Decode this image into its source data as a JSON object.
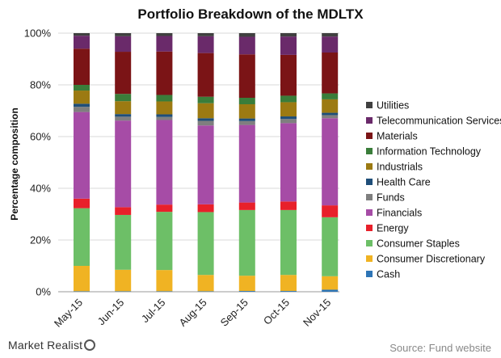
{
  "chart_data": {
    "type": "bar",
    "stacked": true,
    "title": "Portfolio Breakdown of the MDLTX",
    "xlabel": "",
    "ylabel": "Percentage composition",
    "ylim": [
      0,
      100
    ],
    "yticks": [
      "0%",
      "20%",
      "40%",
      "60%",
      "80%",
      "100%"
    ],
    "grid": true,
    "legend_position": "right",
    "categories": [
      "May-15",
      "Jun-15",
      "Jul-15",
      "Aug-15",
      "Sep-15",
      "Oct-15",
      "Nov-15"
    ],
    "series": [
      {
        "name": "Cash",
        "color": "#2e75b6",
        "values": [
          0.2,
          0.2,
          0.2,
          0.2,
          0.3,
          0.3,
          0.8
        ]
      },
      {
        "name": "Consumer Discretionary",
        "color": "#f0b323",
        "values": [
          9.8,
          8.3,
          8.2,
          6.3,
          5.9,
          6.2,
          5.2
        ]
      },
      {
        "name": "Consumer Staples",
        "color": "#6dbf67",
        "values": [
          22.3,
          21.2,
          22.5,
          24.3,
          25.4,
          25.1,
          22.8
        ]
      },
      {
        "name": "Energy",
        "color": "#e8202a",
        "values": [
          3.7,
          3.0,
          2.8,
          3.0,
          2.9,
          3.3,
          4.6
        ]
      },
      {
        "name": "Financials",
        "color": "#a64ca6",
        "values": [
          33.5,
          33.5,
          32.7,
          30.5,
          30.0,
          30.3,
          33.7
        ]
      },
      {
        "name": "Funds",
        "color": "#7f7f7f",
        "values": [
          2.0,
          1.5,
          1.2,
          1.8,
          1.5,
          1.6,
          1.2
        ]
      },
      {
        "name": "Health Care",
        "color": "#1f4e79",
        "values": [
          1.2,
          1.0,
          1.0,
          1.0,
          1.0,
          1.0,
          0.9
        ]
      },
      {
        "name": "Industrials",
        "color": "#9c7a12",
        "values": [
          5.1,
          5.0,
          5.0,
          5.8,
          5.5,
          5.5,
          5.2
        ]
      },
      {
        "name": "Information Technology",
        "color": "#3a7d3a",
        "values": [
          2.2,
          2.8,
          2.5,
          2.5,
          2.5,
          2.5,
          2.3
        ]
      },
      {
        "name": "Materials",
        "color": "#7b1416",
        "values": [
          14.0,
          16.3,
          16.8,
          16.9,
          16.8,
          15.8,
          15.8
        ]
      },
      {
        "name": "Telecommunication Services",
        "color": "#6a2a6a",
        "values": [
          5.0,
          6.0,
          6.0,
          6.5,
          6.8,
          7.1,
          6.2
        ]
      },
      {
        "name": "Utilities",
        "color": "#404040",
        "values": [
          1.0,
          1.2,
          1.1,
          1.2,
          1.4,
          1.3,
          1.3
        ]
      }
    ]
  },
  "footer": {
    "brand": "Market Realist",
    "source": "Source: Fund website"
  }
}
